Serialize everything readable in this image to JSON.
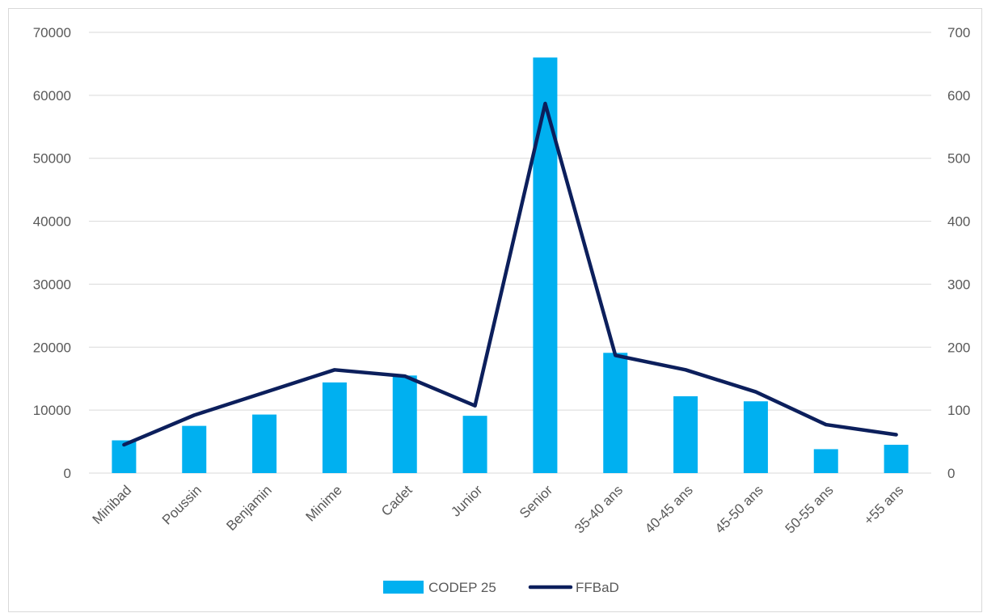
{
  "chart_data": {
    "type": "bar",
    "categories": [
      "Minibad",
      "Poussin",
      "Benjamin",
      "Minime",
      "Cadet",
      "Junior",
      "Senior",
      "35-40 ans",
      "40-45 ans",
      "45-50 ans",
      "50-55 ans",
      "+55 ans"
    ],
    "series": [
      {
        "name": "CODEP 25",
        "type": "bar",
        "axis": "left",
        "color": "#00b0f0",
        "values": [
          5200,
          7500,
          9300,
          14400,
          15500,
          9100,
          66000,
          19100,
          12200,
          11400,
          3800,
          4500
        ]
      },
      {
        "name": "FFBaD",
        "type": "line",
        "axis": "right",
        "color": "#0c1f5c",
        "values": [
          45,
          92,
          128,
          164,
          154,
          107,
          587,
          187,
          164,
          129,
          77,
          61
        ]
      }
    ],
    "y_left": {
      "min": 0,
      "max": 70000,
      "ticks": [
        "0",
        "10000",
        "20000",
        "30000",
        "40000",
        "50000",
        "60000",
        "70000"
      ]
    },
    "y_right": {
      "min": 0,
      "max": 700,
      "ticks": [
        "0",
        "100",
        "200",
        "300",
        "400",
        "500",
        "600",
        "700"
      ]
    },
    "grid": true,
    "legend_position": "bottom"
  }
}
